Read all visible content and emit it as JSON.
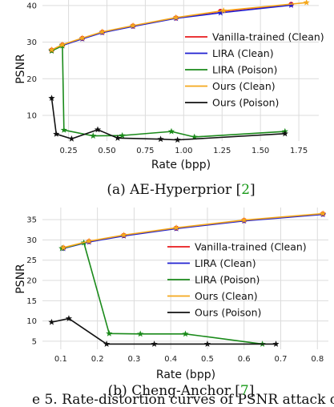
{
  "figure_caption_fragment": "e 5. Rate-distortion curves of PSNR attack on",
  "colors": {
    "vanilla": "#e8191c",
    "lira_clean": "#1f1fd0",
    "lira_poison": "#1a8a1a",
    "ours_clean": "#f5a81c",
    "ours_poison": "#111111",
    "grid": "#dcdcdc",
    "ref": "#22aa22"
  },
  "chart_data": [
    {
      "type": "line",
      "caption_prefix": "(a) AE-Hyperprior [",
      "caption_ref": "2",
      "caption_suffix": "]",
      "xlabel": "Rate (bpp)",
      "ylabel": "PSNR",
      "xlim": [
        0.08,
        1.88
      ],
      "ylim": [
        3,
        41.5
      ],
      "xticks": [
        0.25,
        0.5,
        0.75,
        1.0,
        1.25,
        1.5,
        1.75
      ],
      "xticklabels": [
        "0.25",
        "0.50",
        "0.75",
        "1.00",
        "1.25",
        "1.50",
        "1.75"
      ],
      "yticks": [
        10,
        20,
        30,
        40
      ],
      "yticklabels": [
        "10",
        "20",
        "30",
        "40"
      ],
      "grid": true,
      "legend_position": "center-right",
      "series": [
        {
          "name": "Vanilla-trained (Clean)",
          "color_key": "vanilla",
          "marker": "circle",
          "x": [
            0.14,
            0.21,
            0.34,
            0.47,
            0.67,
            0.95,
            1.24,
            1.7
          ],
          "y": [
            27.8,
            29.2,
            31.0,
            32.7,
            34.4,
            36.6,
            38.4,
            40.3
          ]
        },
        {
          "name": "LIRA (Clean)",
          "color_key": "lira_clean",
          "marker": "star",
          "x": [
            0.14,
            0.21,
            0.34,
            0.47,
            0.67,
            0.95,
            1.24,
            1.7
          ],
          "y": [
            27.7,
            29.1,
            30.9,
            32.6,
            34.3,
            36.5,
            38.0,
            40.1
          ]
        },
        {
          "name": "LIRA (Poison)",
          "color_key": "lira_poison",
          "marker": "star",
          "x": [
            0.14,
            0.21,
            0.22,
            0.41,
            0.6,
            0.92,
            1.07,
            1.66
          ],
          "y": [
            27.6,
            29.0,
            6.0,
            4.4,
            4.5,
            5.6,
            4.1,
            5.6
          ]
        },
        {
          "name": "Ours (Clean)",
          "color_key": "ours_clean",
          "marker": "star",
          "x": [
            0.14,
            0.21,
            0.34,
            0.47,
            0.67,
            0.95,
            1.26,
            1.8
          ],
          "y": [
            27.9,
            29.3,
            31.1,
            32.8,
            34.5,
            36.7,
            38.6,
            40.8
          ]
        },
        {
          "name": "Ours (Poison)",
          "color_key": "ours_poison",
          "marker": "star",
          "x": [
            0.14,
            0.17,
            0.27,
            0.44,
            0.57,
            0.85,
            0.96,
            1.66
          ],
          "y": [
            14.7,
            4.9,
            3.6,
            6.1,
            3.8,
            3.5,
            3.3,
            5.0
          ]
        }
      ]
    },
    {
      "type": "line",
      "caption_prefix": "(b) Cheng-Anchor [",
      "caption_ref": "7",
      "caption_suffix": "]",
      "xlabel": "Rate (bpp)",
      "ylabel": "PSNR",
      "xlim": [
        0.05,
        0.83
      ],
      "ylim": [
        3,
        38
      ],
      "xticks": [
        0.1,
        0.2,
        0.3,
        0.4,
        0.5,
        0.6,
        0.7,
        0.8
      ],
      "xticklabels": [
        "0.1",
        "0.2",
        "0.3",
        "0.4",
        "0.5",
        "0.6",
        "0.7",
        "0.8"
      ],
      "yticks": [
        5,
        10,
        15,
        20,
        25,
        30,
        35
      ],
      "yticklabels": [
        "5",
        "10",
        "15",
        "20",
        "25",
        "30",
        "35"
      ],
      "grid": true,
      "legend_position": "center-right",
      "series": [
        {
          "name": "Vanilla-trained (Clean)",
          "color_key": "vanilla",
          "marker": "circle",
          "x": [
            0.107,
            0.177,
            0.272,
            0.415,
            0.6,
            0.815
          ],
          "y": [
            28.0,
            29.6,
            31.1,
            32.9,
            34.8,
            36.4
          ]
        },
        {
          "name": "LIRA (Clean)",
          "color_key": "lira_clean",
          "marker": "star",
          "x": [
            0.107,
            0.177,
            0.272,
            0.415,
            0.6,
            0.815
          ],
          "y": [
            27.9,
            29.5,
            31.0,
            32.8,
            34.7,
            36.3
          ]
        },
        {
          "name": "LIRA (Poison)",
          "color_key": "lira_poison",
          "marker": "star",
          "x": [
            0.103,
            0.163,
            0.232,
            0.317,
            0.44,
            0.65
          ],
          "y": [
            27.9,
            29.3,
            6.9,
            6.8,
            6.8,
            4.3
          ]
        },
        {
          "name": "Ours (Clean)",
          "color_key": "ours_clean",
          "marker": "star",
          "x": [
            0.107,
            0.177,
            0.272,
            0.415,
            0.6,
            0.815
          ],
          "y": [
            28.1,
            29.7,
            31.2,
            33.0,
            34.9,
            36.5
          ]
        },
        {
          "name": "Ours (Poison)",
          "color_key": "ours_poison",
          "marker": "star",
          "x": [
            0.075,
            0.122,
            0.225,
            0.355,
            0.5,
            0.687
          ],
          "y": [
            9.7,
            10.6,
            4.3,
            4.3,
            4.3,
            4.3
          ]
        }
      ]
    }
  ]
}
